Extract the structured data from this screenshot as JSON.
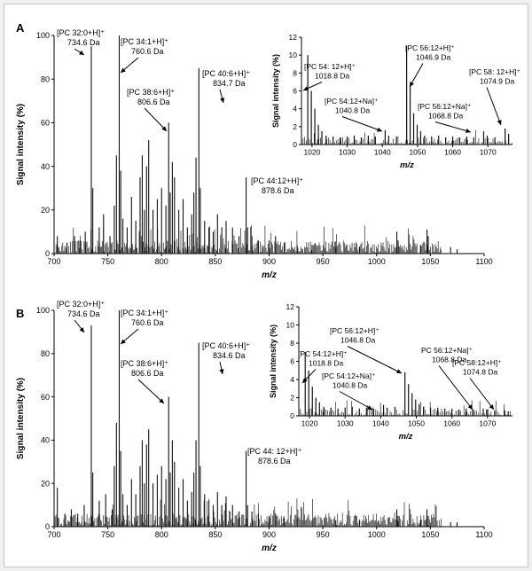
{
  "chart_data": [
    {
      "panel": "A",
      "type": "line",
      "xlabel": "m/z",
      "ylabel": "Signal intensity (%)",
      "xlim": [
        700,
        1100
      ],
      "ylim": [
        0,
        100
      ],
      "xticks": [
        "700",
        "750",
        "800",
        "850",
        "900",
        "950",
        "1000",
        "1050",
        "1100"
      ],
      "yticks": [
        "0",
        "20",
        "40",
        "60",
        "80",
        "100"
      ],
      "peaks": [
        {
          "x": 703,
          "y": 8
        },
        {
          "x": 712,
          "y": 5
        },
        {
          "x": 719,
          "y": 8
        },
        {
          "x": 724,
          "y": 6
        },
        {
          "x": 729,
          "y": 10
        },
        {
          "x": 734.6,
          "y": 95
        },
        {
          "x": 736,
          "y": 30
        },
        {
          "x": 742,
          "y": 12
        },
        {
          "x": 746,
          "y": 18
        },
        {
          "x": 752,
          "y": 8
        },
        {
          "x": 756,
          "y": 22
        },
        {
          "x": 758,
          "y": 45
        },
        {
          "x": 760.6,
          "y": 100
        },
        {
          "x": 762,
          "y": 38
        },
        {
          "x": 764,
          "y": 16
        },
        {
          "x": 768,
          "y": 12
        },
        {
          "x": 772,
          "y": 26
        },
        {
          "x": 776,
          "y": 15
        },
        {
          "x": 780,
          "y": 35
        },
        {
          "x": 782,
          "y": 45
        },
        {
          "x": 784,
          "y": 20
        },
        {
          "x": 786,
          "y": 40
        },
        {
          "x": 788,
          "y": 52
        },
        {
          "x": 792,
          "y": 20
        },
        {
          "x": 796,
          "y": 25
        },
        {
          "x": 800,
          "y": 30
        },
        {
          "x": 804,
          "y": 22
        },
        {
          "x": 806.6,
          "y": 60
        },
        {
          "x": 808,
          "y": 28
        },
        {
          "x": 810,
          "y": 42
        },
        {
          "x": 812,
          "y": 35
        },
        {
          "x": 816,
          "y": 20
        },
        {
          "x": 820,
          "y": 25
        },
        {
          "x": 824,
          "y": 12
        },
        {
          "x": 828,
          "y": 18
        },
        {
          "x": 830,
          "y": 28
        },
        {
          "x": 832,
          "y": 44
        },
        {
          "x": 834.7,
          "y": 85
        },
        {
          "x": 836,
          "y": 30
        },
        {
          "x": 840,
          "y": 15
        },
        {
          "x": 844,
          "y": 12
        },
        {
          "x": 848,
          "y": 10
        },
        {
          "x": 852,
          "y": 18
        },
        {
          "x": 856,
          "y": 12
        },
        {
          "x": 860,
          "y": 15
        },
        {
          "x": 866,
          "y": 12
        },
        {
          "x": 872,
          "y": 8
        },
        {
          "x": 878.6,
          "y": 35
        },
        {
          "x": 880,
          "y": 12
        },
        {
          "x": 884,
          "y": 8
        },
        {
          "x": 890,
          "y": 6
        },
        {
          "x": 900,
          "y": 6
        },
        {
          "x": 906,
          "y": 8
        },
        {
          "x": 914,
          "y": 5
        },
        {
          "x": 926,
          "y": 4
        },
        {
          "x": 940,
          "y": 4
        },
        {
          "x": 962,
          "y": 3
        },
        {
          "x": 984,
          "y": 3
        },
        {
          "x": 1018.8,
          "y": 10
        },
        {
          "x": 1020,
          "y": 6
        },
        {
          "x": 1040.8,
          "y": 4
        },
        {
          "x": 1046.9,
          "y": 11
        },
        {
          "x": 1048,
          "y": 8
        },
        {
          "x": 1068.8,
          "y": 3
        },
        {
          "x": 1074.9,
          "y": 2
        }
      ],
      "annotations": [
        {
          "line1": "[PC 32:0+H]⁺",
          "line2": "734.6 Da",
          "x": 734.6
        },
        {
          "line1": "[PC 34:1+H]⁺",
          "line2": "760.6 Da",
          "x": 760.6
        },
        {
          "line1": "[PC 38:6+H]⁺",
          "line2": "806.6 Da",
          "x": 806.6
        },
        {
          "line1": "[PC 40:6+H]⁺",
          "line2": "834.7 Da",
          "x": 834.7
        },
        {
          "line1": "[PC 44:12+H]⁺",
          "line2": "878.6 Da",
          "x": 878.6
        }
      ],
      "inset": {
        "xlabel": "m/z",
        "ylabel": "Signal intensity (%)",
        "xlim": [
          1017,
          1077
        ],
        "ylim": [
          0,
          12
        ],
        "xticks": [
          "1020",
          "1030",
          "1040",
          "1050",
          "1060",
          "1070"
        ],
        "yticks": [
          "0",
          "2",
          "4",
          "6",
          "8",
          "10",
          "12"
        ],
        "peaks": [
          {
            "x": 1018.8,
            "y": 10.0
          },
          {
            "x": 1019.8,
            "y": 6.0
          },
          {
            "x": 1020.8,
            "y": 4.0
          },
          {
            "x": 1021.8,
            "y": 2.2
          },
          {
            "x": 1022.8,
            "y": 1.5
          },
          {
            "x": 1024,
            "y": 1.0
          },
          {
            "x": 1026,
            "y": 0.9
          },
          {
            "x": 1028,
            "y": 0.8
          },
          {
            "x": 1030,
            "y": 0.9
          },
          {
            "x": 1032,
            "y": 1.0
          },
          {
            "x": 1034,
            "y": 0.8
          },
          {
            "x": 1036,
            "y": 1.0
          },
          {
            "x": 1038,
            "y": 0.9
          },
          {
            "x": 1040.8,
            "y": 1.6
          },
          {
            "x": 1041.8,
            "y": 1.0
          },
          {
            "x": 1044,
            "y": 0.9
          },
          {
            "x": 1046.9,
            "y": 11.0
          },
          {
            "x": 1047.9,
            "y": 6.5
          },
          {
            "x": 1048.9,
            "y": 3.5
          },
          {
            "x": 1049.9,
            "y": 2.2
          },
          {
            "x": 1050.9,
            "y": 1.5
          },
          {
            "x": 1052,
            "y": 1.0
          },
          {
            "x": 1054,
            "y": 0.9
          },
          {
            "x": 1056,
            "y": 1.0
          },
          {
            "x": 1058,
            "y": 0.8
          },
          {
            "x": 1060,
            "y": 0.9
          },
          {
            "x": 1062,
            "y": 0.8
          },
          {
            "x": 1064,
            "y": 0.9
          },
          {
            "x": 1066,
            "y": 0.8
          },
          {
            "x": 1068.8,
            "y": 1.5
          },
          {
            "x": 1069.8,
            "y": 1.0
          },
          {
            "x": 1072,
            "y": 0.8
          },
          {
            "x": 1074.9,
            "y": 1.8
          },
          {
            "x": 1075.9,
            "y": 1.2
          }
        ],
        "annotations": [
          {
            "line1": "[PC 54: 12+H]⁺",
            "line2": "1018.8 Da",
            "x": 1018.8
          },
          {
            "line1": "[PC 54:12+Na]⁺",
            "line2": "1040.8 Da",
            "x": 1040.8
          },
          {
            "line1": "[PC 56:12+H]⁺",
            "line2": "1046.9 Da",
            "x": 1046.9
          },
          {
            "line1": "[PC 56:12+Na]⁺",
            "line2": "1068.8 Da",
            "x": 1068.8
          },
          {
            "line1": "[PC 58: 12+H]⁺",
            "line2": "1074.9 Da",
            "x": 1074.9
          }
        ]
      }
    },
    {
      "panel": "B",
      "type": "line",
      "xlabel": "m/z",
      "ylabel": "Signal intensity (%)",
      "xlim": [
        700,
        1100
      ],
      "ylim": [
        0,
        100
      ],
      "xticks": [
        "700",
        "750",
        "800",
        "850",
        "900",
        "950",
        "1000",
        "1050",
        "1100"
      ],
      "yticks": [
        "0",
        "20",
        "40",
        "60",
        "80",
        "100"
      ],
      "peaks": [
        {
          "x": 703,
          "y": 18
        },
        {
          "x": 710,
          "y": 6
        },
        {
          "x": 716,
          "y": 8
        },
        {
          "x": 722,
          "y": 6
        },
        {
          "x": 728,
          "y": 10
        },
        {
          "x": 734.6,
          "y": 93
        },
        {
          "x": 736,
          "y": 25
        },
        {
          "x": 742,
          "y": 12
        },
        {
          "x": 748,
          "y": 15
        },
        {
          "x": 754,
          "y": 8
        },
        {
          "x": 756,
          "y": 28
        },
        {
          "x": 758,
          "y": 48
        },
        {
          "x": 760.6,
          "y": 100
        },
        {
          "x": 762,
          "y": 35
        },
        {
          "x": 764,
          "y": 15
        },
        {
          "x": 768,
          "y": 10
        },
        {
          "x": 772,
          "y": 22
        },
        {
          "x": 776,
          "y": 15
        },
        {
          "x": 780,
          "y": 28
        },
        {
          "x": 782,
          "y": 40
        },
        {
          "x": 784,
          "y": 20
        },
        {
          "x": 786,
          "y": 38
        },
        {
          "x": 788,
          "y": 45
        },
        {
          "x": 792,
          "y": 20
        },
        {
          "x": 796,
          "y": 24
        },
        {
          "x": 800,
          "y": 28
        },
        {
          "x": 804,
          "y": 22
        },
        {
          "x": 806.6,
          "y": 60
        },
        {
          "x": 808,
          "y": 25
        },
        {
          "x": 810,
          "y": 40
        },
        {
          "x": 812,
          "y": 30
        },
        {
          "x": 816,
          "y": 18
        },
        {
          "x": 820,
          "y": 22
        },
        {
          "x": 824,
          "y": 12
        },
        {
          "x": 828,
          "y": 16
        },
        {
          "x": 830,
          "y": 25
        },
        {
          "x": 832,
          "y": 40
        },
        {
          "x": 834.6,
          "y": 85
        },
        {
          "x": 836,
          "y": 28
        },
        {
          "x": 840,
          "y": 15
        },
        {
          "x": 844,
          "y": 12
        },
        {
          "x": 848,
          "y": 10
        },
        {
          "x": 852,
          "y": 16
        },
        {
          "x": 856,
          "y": 10
        },
        {
          "x": 860,
          "y": 14
        },
        {
          "x": 866,
          "y": 10
        },
        {
          "x": 872,
          "y": 7
        },
        {
          "x": 878.6,
          "y": 35
        },
        {
          "x": 880,
          "y": 10
        },
        {
          "x": 884,
          "y": 7
        },
        {
          "x": 890,
          "y": 6
        },
        {
          "x": 900,
          "y": 5
        },
        {
          "x": 906,
          "y": 6
        },
        {
          "x": 914,
          "y": 4
        },
        {
          "x": 926,
          "y": 4
        },
        {
          "x": 940,
          "y": 3
        },
        {
          "x": 962,
          "y": 3
        },
        {
          "x": 984,
          "y": 3
        },
        {
          "x": 1018.8,
          "y": 8
        },
        {
          "x": 1020,
          "y": 5
        },
        {
          "x": 1040.8,
          "y": 3
        },
        {
          "x": 1046.8,
          "y": 8
        },
        {
          "x": 1048,
          "y": 5
        },
        {
          "x": 1068.8,
          "y": 2
        },
        {
          "x": 1074.8,
          "y": 2
        }
      ],
      "annotations": [
        {
          "line1": "[PC 32:0+H]⁺",
          "line2": "734.6 Da",
          "x": 734.6
        },
        {
          "line1": "[PC 34:1+H]⁺",
          "line2": "760.6 Da",
          "x": 760.6
        },
        {
          "line1": "[PC 38:6+H]⁺",
          "line2": "806.6 Da",
          "x": 806.6
        },
        {
          "line1": "[PC 40:6+H]⁺",
          "line2": "834.6 Da",
          "x": 834.6
        },
        {
          "line1": "[PC 44: 12+H]⁺",
          "line2": "878.6 Da",
          "x": 878.6
        }
      ],
      "inset": {
        "xlabel": "m/z",
        "ylabel": "Signal intensity (%)",
        "xlim": [
          1017,
          1077
        ],
        "ylim": [
          0,
          12
        ],
        "xticks": [
          "1020",
          "1030",
          "1040",
          "1050",
          "1060",
          "1070"
        ],
        "yticks": [
          "0",
          "2",
          "4",
          "6",
          "8",
          "10",
          "12"
        ],
        "peaks": [
          {
            "x": 1018.8,
            "y": 7.0
          },
          {
            "x": 1019.8,
            "y": 5.0
          },
          {
            "x": 1020.8,
            "y": 3.2
          },
          {
            "x": 1021.8,
            "y": 2.0
          },
          {
            "x": 1022.8,
            "y": 1.5
          },
          {
            "x": 1024,
            "y": 1.0
          },
          {
            "x": 1026,
            "y": 0.9
          },
          {
            "x": 1028,
            "y": 0.8
          },
          {
            "x": 1030,
            "y": 0.9
          },
          {
            "x": 1032,
            "y": 1.0
          },
          {
            "x": 1034,
            "y": 0.8
          },
          {
            "x": 1036,
            "y": 0.9
          },
          {
            "x": 1038,
            "y": 0.8
          },
          {
            "x": 1040.8,
            "y": 1.2
          },
          {
            "x": 1041.8,
            "y": 0.9
          },
          {
            "x": 1044,
            "y": 1.0
          },
          {
            "x": 1046.8,
            "y": 4.8
          },
          {
            "x": 1047.8,
            "y": 3.5
          },
          {
            "x": 1048.8,
            "y": 2.5
          },
          {
            "x": 1049.8,
            "y": 1.8
          },
          {
            "x": 1050.8,
            "y": 1.3
          },
          {
            "x": 1052,
            "y": 1.0
          },
          {
            "x": 1054,
            "y": 0.9
          },
          {
            "x": 1056,
            "y": 0.9
          },
          {
            "x": 1058,
            "y": 0.8
          },
          {
            "x": 1060,
            "y": 0.8
          },
          {
            "x": 1062,
            "y": 0.7
          },
          {
            "x": 1064,
            "y": 0.8
          },
          {
            "x": 1066,
            "y": 0.7
          },
          {
            "x": 1068.8,
            "y": 0.8
          },
          {
            "x": 1069.8,
            "y": 0.7
          },
          {
            "x": 1072,
            "y": 0.6
          },
          {
            "x": 1074.8,
            "y": 0.6
          },
          {
            "x": 1075.8,
            "y": 0.5
          }
        ],
        "annotations": [
          {
            "line1": "[PC 54:12+H]⁺",
            "line2": "1018.8 Da",
            "x": 1018.8
          },
          {
            "line1": "[PC 54:12+Na]⁺",
            "line2": "1040.8 Da",
            "x": 1040.8
          },
          {
            "line1": "[PC 56:12+H]⁺",
            "line2": "1046.8 Da",
            "x": 1046.8
          },
          {
            "line1": "PC 56:12+Na]⁺",
            "line2": "1068.8 Da",
            "x": 1068.8
          },
          {
            "line1": "[PC 58:12+H]⁺",
            "line2": "1074.8 Da",
            "x": 1074.8
          }
        ]
      }
    }
  ]
}
